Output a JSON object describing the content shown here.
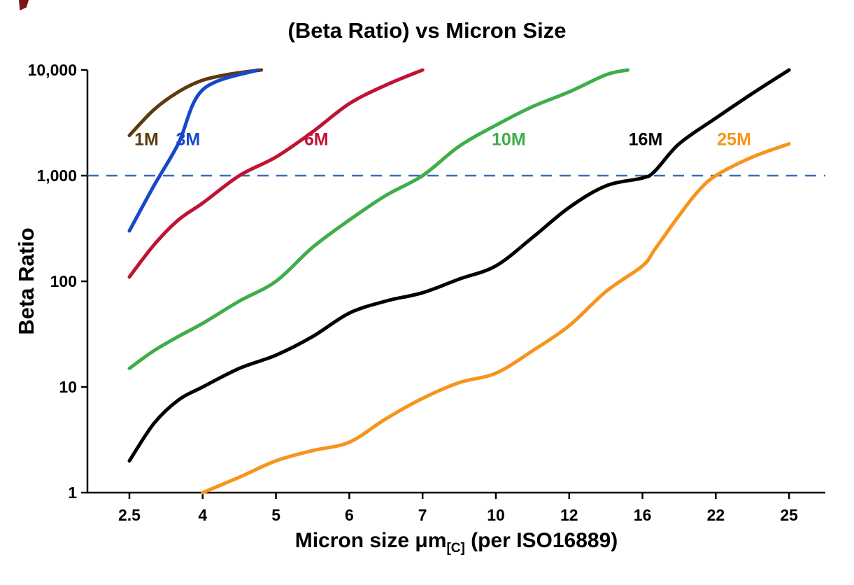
{
  "page": {
    "title": "(Beta Ratio) vs Micron Size"
  },
  "chart_data": {
    "type": "line",
    "title": "(Beta Ratio) vs Micron Size",
    "ylabel": "Beta Ratio",
    "xlabel_parts": {
      "main": "Micron size μm",
      "sub": "[C]",
      "rest": " (per ISO16889)"
    },
    "x_scale": "category",
    "y_scale": "log",
    "ylim": [
      1,
      10000
    ],
    "grid": "off",
    "legend": "inline-colored-labels",
    "x_ticks": [
      "2.5",
      "4",
      "5",
      "6",
      "7",
      "10",
      "12",
      "16",
      "22",
      "25"
    ],
    "x_tick_values": [
      2.5,
      4,
      5,
      6,
      7,
      10,
      12,
      16,
      22,
      25
    ],
    "y_ticks": [
      {
        "value": 1,
        "label": "1"
      },
      {
        "value": 10,
        "label": "10"
      },
      {
        "value": 100,
        "label": "100"
      },
      {
        "value": 1000,
        "label": "1,000"
      },
      {
        "value": 10000,
        "label": "10,000"
      }
    ],
    "reference_line": {
      "y": 1000,
      "color": "#3b6db5",
      "style": "dashed"
    },
    "series": [
      {
        "name": "1M",
        "color": "#5e3a10",
        "label_anchor": [
          2.85,
          2200
        ],
        "points": [
          [
            2.5,
            2400
          ],
          [
            3,
            4200
          ],
          [
            3.5,
            6200
          ],
          [
            4,
            8000
          ],
          [
            4.4,
            9200
          ],
          [
            4.8,
            10000
          ]
        ]
      },
      {
        "name": "3M",
        "color": "#1748c9",
        "label_anchor": [
          3.7,
          2200
        ],
        "points": [
          [
            2.5,
            300
          ],
          [
            3,
            800
          ],
          [
            3.5,
            2000
          ],
          [
            4,
            6500
          ],
          [
            4.75,
            10000
          ]
        ]
      },
      {
        "name": "6M",
        "color": "#c01334",
        "label_anchor": [
          5.55,
          2200
        ],
        "points": [
          [
            2.5,
            110
          ],
          [
            3,
            220
          ],
          [
            3.5,
            380
          ],
          [
            4,
            550
          ],
          [
            4.5,
            1000
          ],
          [
            5,
            1500
          ],
          [
            5.5,
            2600
          ],
          [
            6,
            4800
          ],
          [
            6.5,
            7200
          ],
          [
            7,
            10000
          ]
        ]
      },
      {
        "name": "10M",
        "color": "#3fae4a",
        "label_anchor": [
          10.35,
          2200
        ],
        "points": [
          [
            2.5,
            15
          ],
          [
            3,
            22
          ],
          [
            3.5,
            30
          ],
          [
            4,
            40
          ],
          [
            4.5,
            65
          ],
          [
            5,
            100
          ],
          [
            5.5,
            210
          ],
          [
            6,
            380
          ],
          [
            6.5,
            650
          ],
          [
            7,
            1000
          ],
          [
            8.5,
            1900
          ],
          [
            10,
            3000
          ],
          [
            11,
            4500
          ],
          [
            12,
            6200
          ],
          [
            14,
            9000
          ],
          [
            15.2,
            10000
          ]
        ]
      },
      {
        "name": "16M",
        "color": "#000000",
        "label_anchor": [
          16.25,
          2200
        ],
        "points": [
          [
            2.5,
            2
          ],
          [
            3,
            4.5
          ],
          [
            3.5,
            7.5
          ],
          [
            4,
            10
          ],
          [
            4.5,
            15
          ],
          [
            5,
            20
          ],
          [
            5.5,
            30
          ],
          [
            6,
            50
          ],
          [
            6.5,
            65
          ],
          [
            7,
            78
          ],
          [
            8.5,
            105
          ],
          [
            10,
            140
          ],
          [
            11,
            260
          ],
          [
            12,
            500
          ],
          [
            14,
            800
          ],
          [
            16,
            950
          ],
          [
            17,
            1100
          ],
          [
            19,
            2000
          ],
          [
            22,
            3500
          ],
          [
            23.5,
            6000
          ],
          [
            25,
            10000
          ]
        ]
      },
      {
        "name": "25M",
        "color": "#f7941d",
        "label_anchor": [
          22.75,
          2200
        ],
        "points": [
          [
            4,
            1
          ],
          [
            4.5,
            1.4
          ],
          [
            5,
            2
          ],
          [
            5.5,
            2.5
          ],
          [
            6,
            3
          ],
          [
            6.5,
            5
          ],
          [
            7,
            7.8
          ],
          [
            8.5,
            11
          ],
          [
            10,
            13.5
          ],
          [
            11,
            22
          ],
          [
            12,
            38
          ],
          [
            14,
            80
          ],
          [
            16,
            140
          ],
          [
            17,
            200
          ],
          [
            19,
            420
          ],
          [
            20.5,
            700
          ],
          [
            22,
            1000
          ],
          [
            23.5,
            1500
          ],
          [
            25,
            2000
          ]
        ]
      }
    ]
  }
}
